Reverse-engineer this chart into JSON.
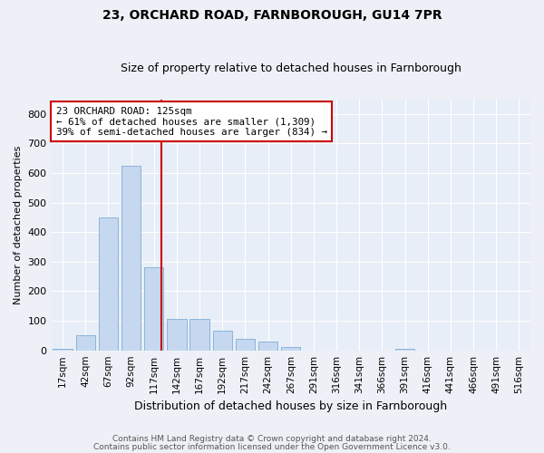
{
  "title1": "23, ORCHARD ROAD, FARNBOROUGH, GU14 7PR",
  "title2": "Size of property relative to detached houses in Farnborough",
  "xlabel": "Distribution of detached houses by size in Farnborough",
  "ylabel": "Number of detached properties",
  "bar_labels": [
    "17sqm",
    "42sqm",
    "67sqm",
    "92sqm",
    "117sqm",
    "142sqm",
    "167sqm",
    "192sqm",
    "217sqm",
    "242sqm",
    "267sqm",
    "291sqm",
    "316sqm",
    "341sqm",
    "366sqm",
    "391sqm",
    "416sqm",
    "441sqm",
    "466sqm",
    "491sqm",
    "516sqm"
  ],
  "bar_values": [
    5,
    50,
    450,
    625,
    280,
    105,
    105,
    65,
    40,
    30,
    10,
    0,
    0,
    0,
    0,
    5,
    0,
    0,
    0,
    0,
    0
  ],
  "bar_color": "#c5d8f0",
  "bar_edge_color": "#8ab4d8",
  "property_line_color": "#cc0000",
  "annotation_text": "23 ORCHARD ROAD: 125sqm\n← 61% of detached houses are smaller (1,309)\n39% of semi-detached houses are larger (834) →",
  "annotation_box_color": "#ffffff",
  "annotation_box_edge": "#cc0000",
  "ylim": [
    0,
    850
  ],
  "yticks": [
    0,
    100,
    200,
    300,
    400,
    500,
    600,
    700,
    800
  ],
  "bg_color": "#e8eef7",
  "fig_bg_color": "#edf1f7",
  "grid_color": "#ffffff",
  "footer1": "Contains HM Land Registry data © Crown copyright and database right 2024.",
  "footer2": "Contains public sector information licensed under the Open Government Licence v3.0."
}
